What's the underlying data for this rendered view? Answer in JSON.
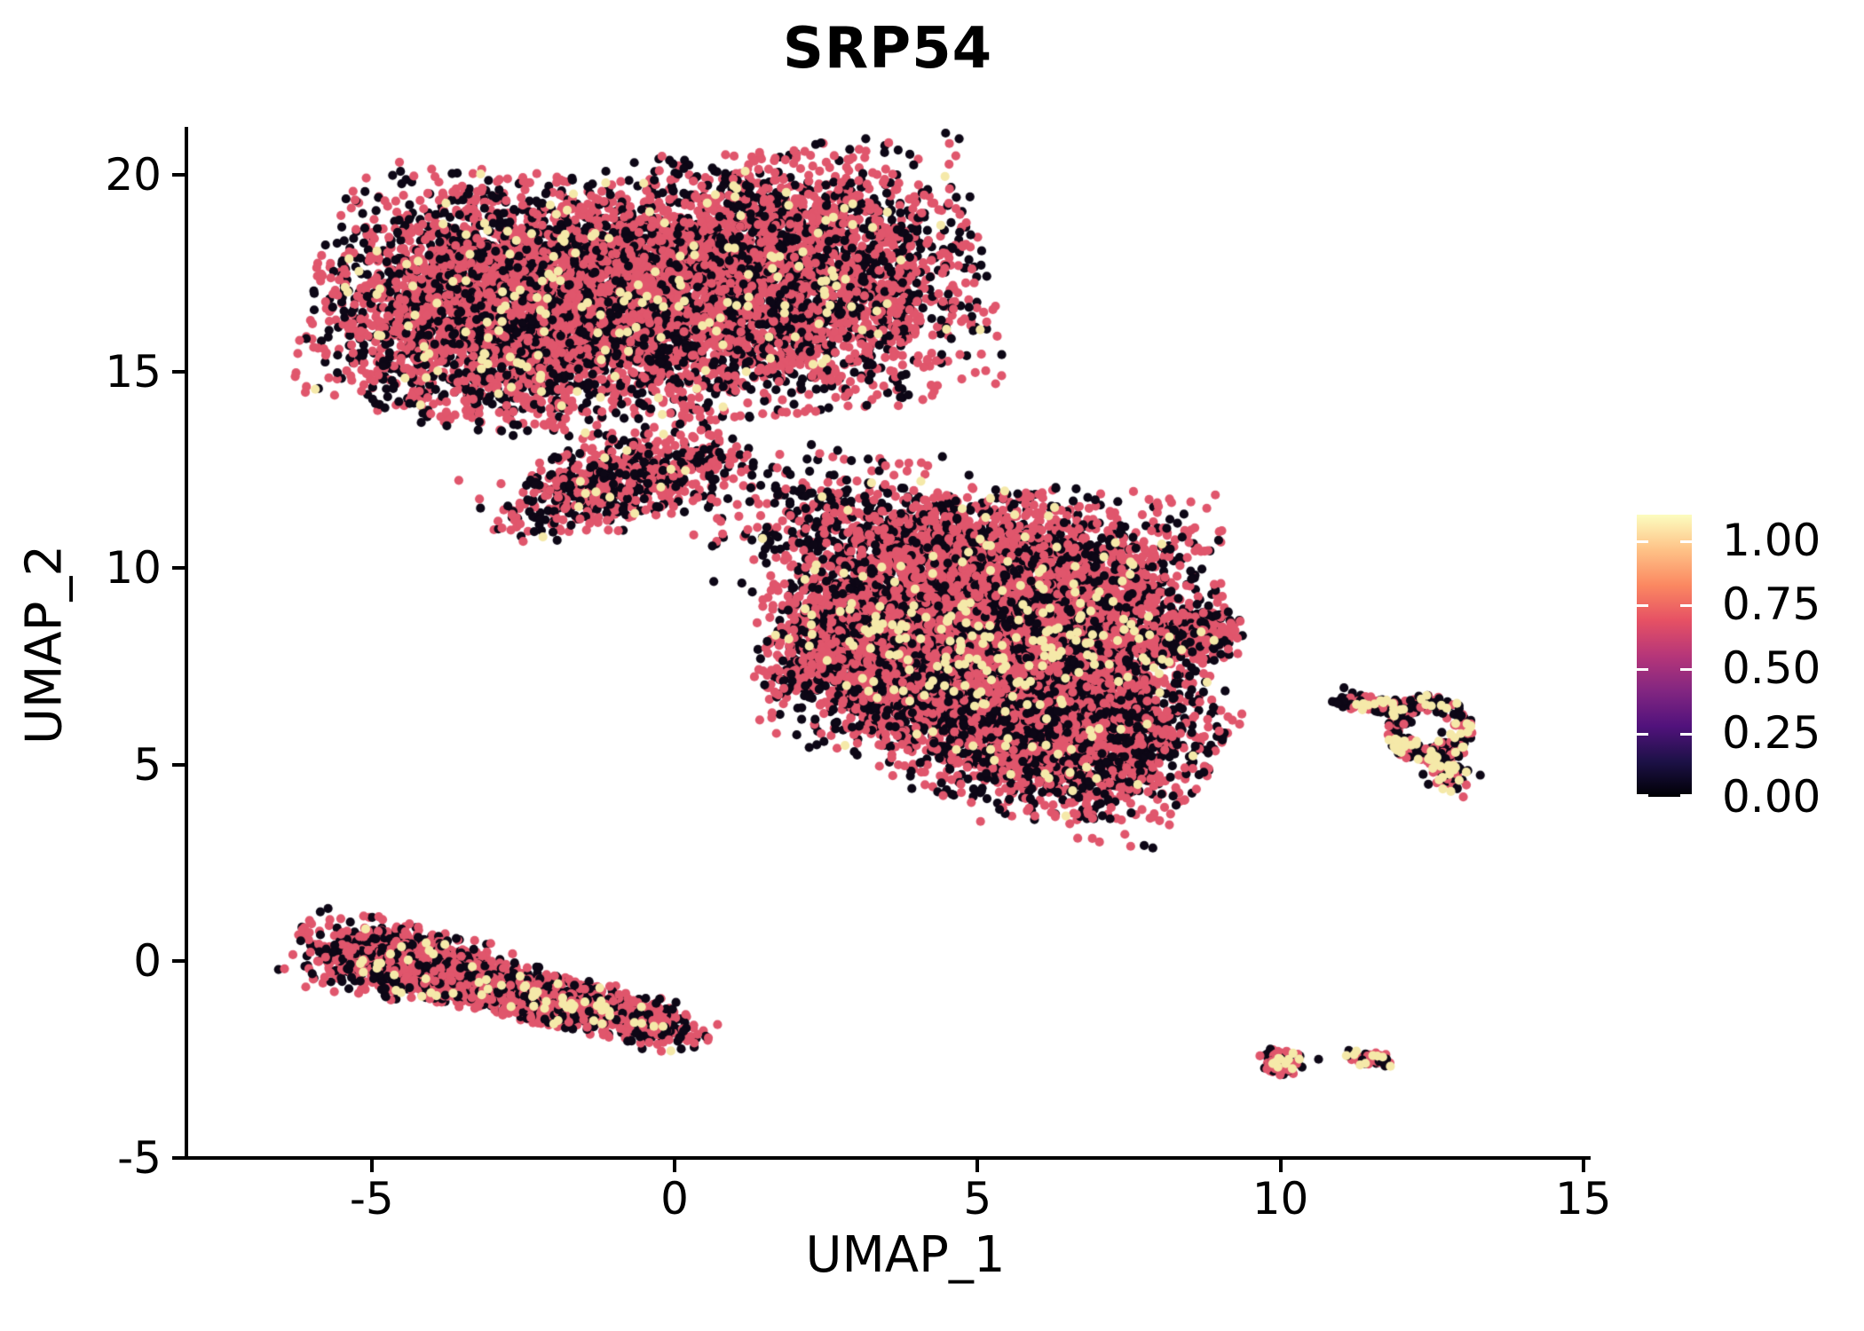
{
  "title": "SRP54",
  "chart_data": {
    "type": "scatter",
    "title": "SRP54",
    "xlabel": "UMAP_1",
    "ylabel": "UMAP_2",
    "xlim": [
      -8.1,
      15.1
    ],
    "ylim": [
      -5.1,
      21.2
    ],
    "x_ticks": [
      -5,
      0,
      5,
      10,
      15
    ],
    "y_ticks": [
      20,
      15,
      10,
      5,
      0,
      -5
    ],
    "grid": false,
    "legend": {
      "position": "right",
      "scale_min": 0.0,
      "scale_max": 1.1,
      "tick_labels": [
        "1.00",
        "0.75",
        "0.50",
        "0.25",
        "0.00"
      ],
      "tick_fracs_from_bottom": [
        0.909,
        0.682,
        0.455,
        0.227,
        0.0
      ],
      "colormap_name": "magma",
      "colormap_stops_bottom_to_top": [
        "#000004",
        "#1d1147",
        "#51127c",
        "#822681",
        "#b63679",
        "#e65164",
        "#fb8861",
        "#fec287",
        "#fcfdbf"
      ]
    },
    "point_style": {
      "radius_px": 5.1,
      "colors": {
        "zero": "#0d0716",
        "mid": "#e0566c",
        "high": "#f5e9a9"
      }
    },
    "seed": 11,
    "clusters": [
      {
        "name": "top-left-lobe",
        "type": "gauss",
        "cx": -2.6,
        "cy": 16.7,
        "sx": 1.5,
        "sy": 1.45,
        "rot": -12,
        "n": 4000,
        "trunc": 2.3,
        "mix": {
          "zero": 0.4,
          "mid": 0.575,
          "high": 0.025
        }
      },
      {
        "name": "top-right-lobe",
        "type": "gauss",
        "cx": 1.5,
        "cy": 17.3,
        "sx": 1.6,
        "sy": 1.5,
        "rot": 8,
        "n": 3800,
        "trunc": 2.3,
        "mix": {
          "zero": 0.4,
          "mid": 0.575,
          "high": 0.025
        }
      },
      {
        "name": "beak",
        "type": "gauss",
        "cx": -0.9,
        "cy": 12.2,
        "sx": 1.05,
        "sy": 0.5,
        "rot": 25,
        "n": 700,
        "trunc": 2.3,
        "mix": {
          "zero": 0.47,
          "mid": 0.505,
          "high": 0.025
        }
      },
      {
        "name": "bridge",
        "type": "gauss",
        "cx": 2.6,
        "cy": 11.2,
        "sx": 1.0,
        "sy": 0.85,
        "rot": 0,
        "n": 280,
        "trunc": 2.3,
        "mix": {
          "zero": 0.52,
          "mid": 0.46,
          "high": 0.02
        }
      },
      {
        "name": "bridge-2",
        "type": "gauss",
        "cx": 4.2,
        "cy": 10.6,
        "sx": 0.7,
        "sy": 0.6,
        "rot": 0,
        "n": 120,
        "trunc": 2.3,
        "mix": {
          "zero": 0.52,
          "mid": 0.46,
          "high": 0.02
        }
      },
      {
        "name": "middle-main",
        "type": "gauss",
        "cx": 5.3,
        "cy": 8.6,
        "sx": 1.65,
        "sy": 1.5,
        "rot": 0,
        "n": 6300,
        "trunc": 2.3,
        "mix": {
          "zero": 0.38,
          "mid": 0.595,
          "high": 0.025
        }
      },
      {
        "name": "middle-left",
        "type": "gauss",
        "cx": 3.0,
        "cy": 8.0,
        "sx": 0.75,
        "sy": 1.0,
        "rot": 0,
        "n": 800,
        "trunc": 2.3,
        "mix": {
          "zero": 0.4,
          "mid": 0.575,
          "high": 0.025
        }
      },
      {
        "name": "middle-bottom",
        "type": "gauss",
        "cx": 6.1,
        "cy": 5.9,
        "sx": 1.3,
        "sy": 1.0,
        "rot": -25,
        "n": 2500,
        "trunc": 2.3,
        "mix": {
          "zero": 0.46,
          "mid": 0.515,
          "high": 0.025
        }
      },
      {
        "name": "middle-right-tip",
        "type": "gauss",
        "cx": 8.4,
        "cy": 8.2,
        "sx": 0.45,
        "sy": 0.3,
        "rot": 12,
        "n": 280,
        "trunc": 2.3,
        "mix": {
          "zero": 0.42,
          "mid": 0.555,
          "high": 0.025
        }
      },
      {
        "name": "right-ring",
        "type": "ring",
        "cx": 12.45,
        "cy": 5.9,
        "r_inner": 0.3,
        "r_outer": 0.72,
        "y_scale": 1.2,
        "n": 200,
        "mix": {
          "zero": 0.42,
          "mid": 0.42,
          "high": 0.16
        }
      },
      {
        "name": "right-arm",
        "type": "gauss",
        "cx": 11.55,
        "cy": 6.55,
        "sx": 0.35,
        "sy": 0.12,
        "rot": -5,
        "n": 90,
        "trunc": 2.3,
        "mix": {
          "zero": 0.45,
          "mid": 0.42,
          "high": 0.13
        }
      },
      {
        "name": "right-foot",
        "type": "gauss",
        "cx": 12.75,
        "cy": 4.95,
        "sx": 0.22,
        "sy": 0.38,
        "rot": 10,
        "n": 110,
        "trunc": 2.3,
        "mix": {
          "zero": 0.4,
          "mid": 0.47,
          "high": 0.13
        }
      },
      {
        "name": "bottom-bar-head",
        "type": "gauss",
        "cx": -4.6,
        "cy": 0.0,
        "sx": 0.8,
        "sy": 0.45,
        "rot": -15,
        "n": 800,
        "trunc": 2.3,
        "mix": {
          "zero": 0.4,
          "mid": 0.57,
          "high": 0.03
        }
      },
      {
        "name": "bottom-bar",
        "type": "gauss",
        "cx": -2.5,
        "cy": -0.8,
        "sx": 1.45,
        "sy": 0.3,
        "rot": -20,
        "n": 1800,
        "trunc": 2.3,
        "mix": {
          "zero": 0.36,
          "mid": 0.61,
          "high": 0.03
        }
      },
      {
        "name": "tiny-left",
        "type": "gauss",
        "cx": 10.0,
        "cy": -2.57,
        "sx": 0.17,
        "sy": 0.15,
        "rot": -10,
        "n": 110,
        "trunc": 2.3,
        "mix": {
          "zero": 0.42,
          "mid": 0.47,
          "high": 0.11
        }
      },
      {
        "name": "tiny-right",
        "type": "gauss",
        "cx": 11.5,
        "cy": -2.5,
        "sx": 0.2,
        "sy": 0.08,
        "rot": -8,
        "n": 75,
        "trunc": 2.3,
        "mix": {
          "zero": 0.4,
          "mid": 0.5,
          "high": 0.1
        }
      }
    ],
    "outlier_points": [
      {
        "x": 5.05,
        "y": 3.55,
        "c": "mid"
      },
      {
        "x": 10.63,
        "y": -2.5,
        "c": "zero"
      },
      {
        "x": 11.05,
        "y": 6.95,
        "c": "zero"
      },
      {
        "x": 10.95,
        "y": 6.55,
        "c": "zero"
      }
    ]
  }
}
